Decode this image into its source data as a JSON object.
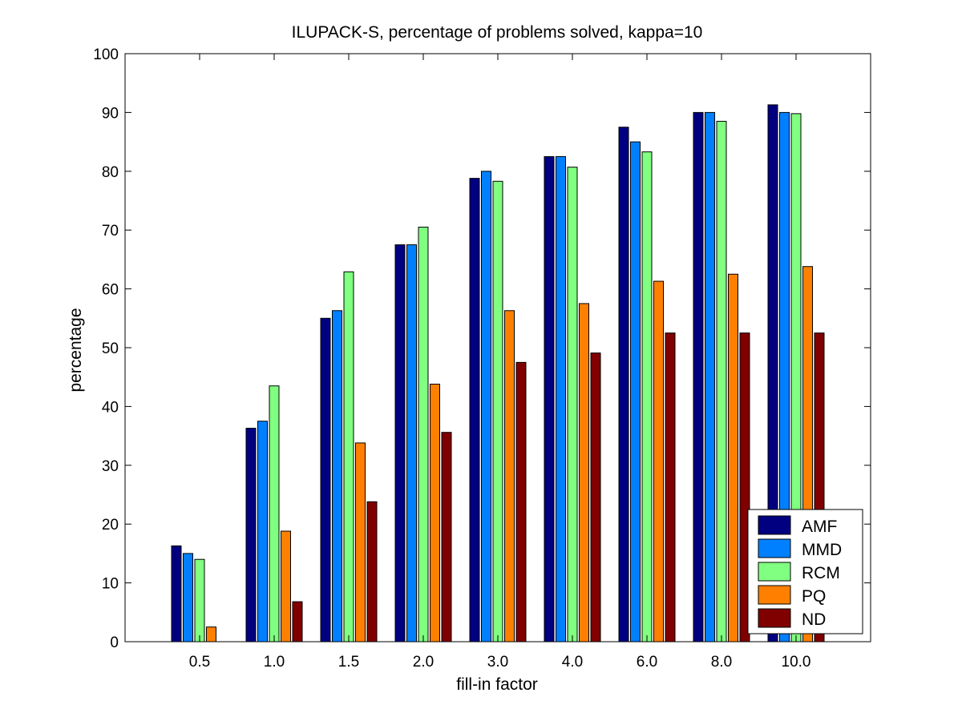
{
  "chart_data": {
    "type": "bar",
    "title": "ILUPACK-S, percentage of problems solved, kappa=10",
    "xlabel": "fill-in factor",
    "ylabel": "percentage",
    "ylim": [
      0,
      100
    ],
    "yticks": [
      0,
      10,
      20,
      30,
      40,
      50,
      60,
      70,
      80,
      90,
      100
    ],
    "categories": [
      "0.5",
      "1.0",
      "1.5",
      "2.0",
      "3.0",
      "4.0",
      "6.0",
      "8.0",
      "10.0"
    ],
    "grid": false,
    "legend_position": "bottom-right",
    "series": [
      {
        "name": "AMF",
        "color": "#000080",
        "values": [
          16.3,
          36.3,
          55.0,
          67.5,
          78.8,
          82.5,
          87.5,
          90.0,
          91.3
        ]
      },
      {
        "name": "MMD",
        "color": "#0080ff",
        "values": [
          15.0,
          37.5,
          56.3,
          67.5,
          80.0,
          82.5,
          85.0,
          90.0,
          90.0
        ]
      },
      {
        "name": "RCM",
        "color": "#80ff80",
        "values": [
          14.0,
          43.5,
          62.9,
          70.5,
          78.3,
          80.7,
          83.3,
          88.5,
          89.8
        ]
      },
      {
        "name": "PQ",
        "color": "#ff8000",
        "values": [
          2.5,
          18.8,
          33.8,
          43.8,
          56.3,
          57.5,
          61.3,
          62.5,
          63.8
        ]
      },
      {
        "name": "ND",
        "color": "#800000",
        "values": [
          0,
          6.8,
          23.8,
          35.6,
          47.5,
          49.1,
          52.5,
          52.5,
          52.5
        ]
      }
    ]
  }
}
